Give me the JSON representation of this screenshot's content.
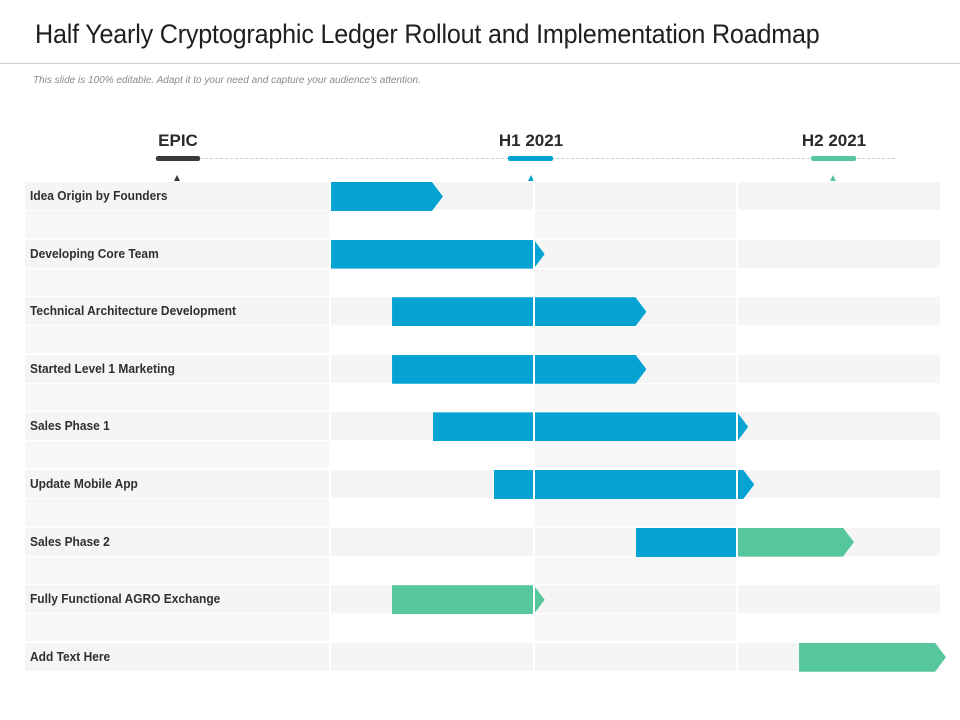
{
  "title": "Half Yearly Cryptographic Ledger Rollout and Implementation Roadmap",
  "subtitle": "This slide is 100% editable. Adapt it to your need and capture your audience's attention.",
  "columns": {
    "epic": "EPIC",
    "h1": "H1 2021",
    "h2": "H2 2021"
  },
  "colors": {
    "epic": "#3a3a3a",
    "h1": "#04a3d4",
    "h2": "#56c79c",
    "row_band": "#f5f5f5"
  },
  "rows": [
    {
      "label": "Idea Origin by Founders",
      "segments": [
        {
          "start": 0.0,
          "end": 0.55,
          "color": "blue"
        }
      ]
    },
    {
      "label": "Developing Core Team",
      "segments": [
        {
          "start": 0.0,
          "end": 1.05,
          "color": "blue"
        }
      ]
    },
    {
      "label": "Technical Architecture Development",
      "segments": [
        {
          "start": 0.3,
          "end": 1.55,
          "color": "blue"
        }
      ]
    },
    {
      "label": "Started Level 1 Marketing",
      "segments": [
        {
          "start": 0.3,
          "end": 1.55,
          "color": "blue"
        }
      ]
    },
    {
      "label": "Sales Phase 1",
      "segments": [
        {
          "start": 0.5,
          "end": 2.05,
          "color": "blue"
        }
      ]
    },
    {
      "label": "Update Mobile App",
      "segments": [
        {
          "start": 0.8,
          "end": 2.08,
          "color": "blue"
        }
      ]
    },
    {
      "label": "Sales Phase 2",
      "segments": [
        {
          "start": 1.5,
          "end": 2.0,
          "color": "blue"
        },
        {
          "start": 2.0,
          "end": 2.57,
          "color": "green"
        }
      ]
    },
    {
      "label": "Fully Functional AGRO Exchange",
      "segments": [
        {
          "start": 0.3,
          "end": 1.05,
          "color": "green"
        }
      ]
    },
    {
      "label": "Add Text Here",
      "segments": [
        {
          "start": 2.3,
          "end": 3.07,
          "color": "green"
        }
      ]
    }
  ]
}
